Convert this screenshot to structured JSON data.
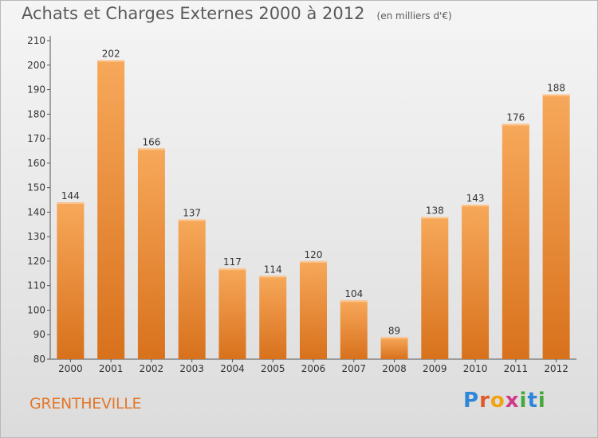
{
  "header": {
    "title": "Achats et Charges Externes 2000 à 2012",
    "unit": "(en milliers d'€)"
  },
  "footer": {
    "commune": "GRENTHEVILLE",
    "logo": "Proxiti"
  },
  "colors": {
    "bar_light": "#f7a85a",
    "bar_dark": "#d8711c",
    "commune_text": "#e2782a"
  },
  "chart_data": {
    "type": "bar",
    "title": "Achats et Charges Externes 2000 à 2012",
    "subtitle": "(en milliers d'€)",
    "categories": [
      "2000",
      "2001",
      "2002",
      "2003",
      "2004",
      "2005",
      "2006",
      "2007",
      "2008",
      "2009",
      "2010",
      "2011",
      "2012"
    ],
    "values": [
      144,
      202,
      166,
      137,
      117,
      114,
      120,
      104,
      89,
      138,
      143,
      176,
      188
    ],
    "ylim": [
      80,
      210
    ],
    "yticks": [
      80,
      90,
      100,
      110,
      120,
      130,
      140,
      150,
      160,
      170,
      180,
      190,
      200,
      210
    ],
    "grid": false,
    "legend": "none"
  }
}
